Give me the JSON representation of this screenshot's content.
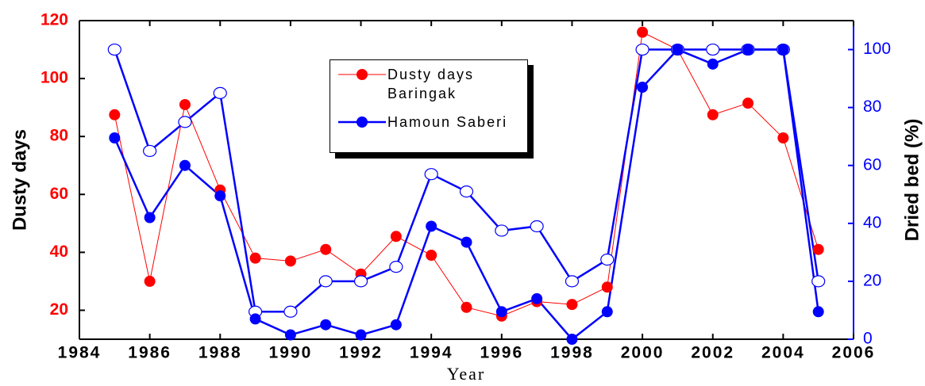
{
  "chart_data": {
    "type": "line",
    "x_label": "Year",
    "y_label": "Dusty days",
    "y2_label": "Dried bed (%)",
    "x": [
      1985,
      1986,
      1987,
      1988,
      1989,
      1990,
      1991,
      1992,
      1993,
      1994,
      1995,
      1996,
      1997,
      1998,
      1999,
      2000,
      2001,
      2002,
      2003,
      2004,
      2005
    ],
    "series": [
      {
        "name": "Dusty days Baringak",
        "color": "#ff0000",
        "axis": "y",
        "marker": "filled",
        "line_width": 1,
        "values": [
          87.5,
          30,
          91,
          61.5,
          38,
          37,
          41,
          32.5,
          45.5,
          39,
          21,
          18,
          23,
          22,
          28,
          116,
          110,
          87.5,
          91.5,
          79.5,
          41
        ]
      },
      {
        "color": "#0000ff",
        "axis": "y2",
        "marker": "open",
        "line_width": 2.5,
        "values": [
          100,
          65,
          75,
          85,
          9.5,
          9.5,
          20,
          20,
          25,
          57,
          51,
          37.5,
          39,
          20,
          27.5,
          100,
          100,
          100,
          100,
          100,
          20
        ]
      },
      {
        "name": "Hamoun Saberi",
        "color": "#0000ff",
        "axis": "y2",
        "marker": "filled",
        "line_width": 2.5,
        "values": [
          69.5,
          42,
          60,
          49.5,
          7,
          1.5,
          5,
          1.5,
          5,
          39,
          33.5,
          9.5,
          14,
          0,
          9.5,
          87,
          100,
          95,
          100,
          100,
          9.5
        ]
      }
    ],
    "xlim": [
      1984,
      2006
    ],
    "xticks": [
      1984,
      1986,
      1988,
      1990,
      1992,
      1994,
      1996,
      1998,
      2000,
      2002,
      2004,
      2006
    ],
    "ylim": [
      10,
      120
    ],
    "yticks": [
      20,
      40,
      60,
      80,
      100,
      120
    ],
    "y2lim": [
      0,
      110
    ],
    "y2ticks": [
      0,
      20,
      40,
      60,
      80,
      100
    ],
    "y_color": "#ff0000",
    "y2_color": "#0000ff",
    "legend": "upper-center"
  }
}
